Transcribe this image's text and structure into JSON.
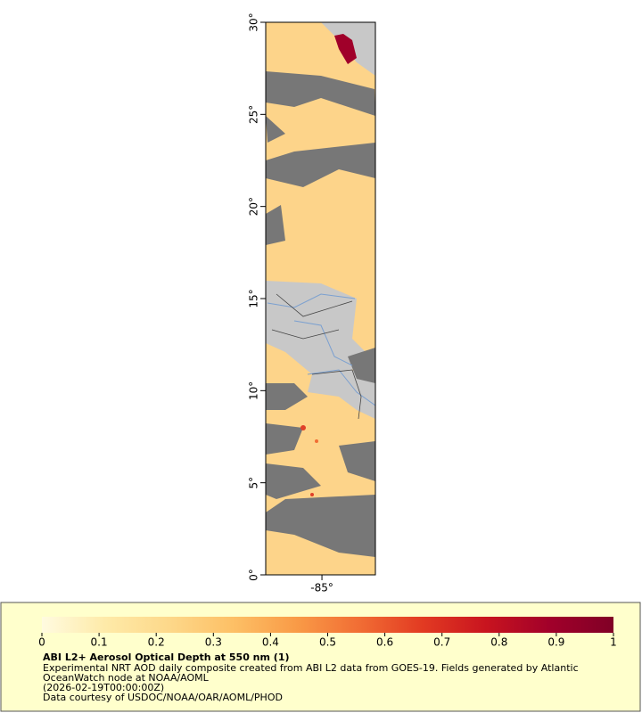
{
  "map": {
    "lat_lim": [
      0,
      30
    ],
    "lon_lim": [
      -88.05,
      -82.1
    ],
    "lat_ticks": [
      {
        "value": 0,
        "label": "0°"
      },
      {
        "value": 5,
        "label": "5°"
      },
      {
        "value": 10,
        "label": "10°"
      },
      {
        "value": 15,
        "label": "15°"
      },
      {
        "value": 20,
        "label": "20°"
      },
      {
        "value": 25,
        "label": "25°"
      },
      {
        "value": 30,
        "label": "30°"
      }
    ],
    "lon_ticks": [
      {
        "value": -85,
        "label": "-85°"
      }
    ]
  },
  "colorbar": {
    "lim": [
      0,
      1
    ],
    "ticks": [
      0,
      0.1,
      0.2,
      0.3,
      0.4,
      0.5,
      0.6,
      0.7,
      0.8,
      0.9,
      1
    ],
    "colors": [
      "#fffbe0",
      "#feeaa8",
      "#fdd88a",
      "#fdc066",
      "#f99b47",
      "#f16d34",
      "#e23a22",
      "#c8141f",
      "#a1002a",
      "#800026"
    ]
  },
  "legend": {
    "title": "ABI L2+ Aerosol Optical Depth at 550 nm (1)",
    "description": "Experimental NRT AOD daily composite created from ABI L2 data from GOES-19. Fields generated by Atlantic OceanWatch node at NOAA/AOML",
    "timestamp": "(2026-02-19T00:00:00Z)",
    "credit": "Data courtesy of USDOC/NOAA/OAR/AOML/PHOD"
  }
}
